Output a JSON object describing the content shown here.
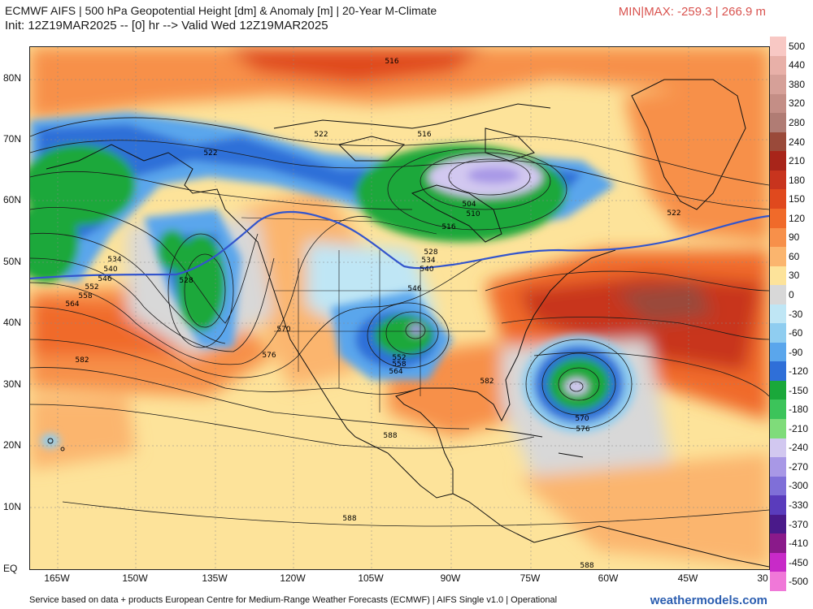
{
  "header": {
    "title": "ECMWF AIFS | 500 hPa Geopotential Height [dm] & Anomaly [m] | 20-Year M-Climate",
    "subtitle": "Init: 12Z19MAR2025 -- [0] hr --> Valid Wed 12Z19MAR2025",
    "minmax": "MIN|MAX: -259.3 | 266.9 m"
  },
  "map": {
    "lat_labels": [
      "80N",
      "70N",
      "60N",
      "50N",
      "40N",
      "30N",
      "20N",
      "10N",
      "EQ"
    ],
    "lon_labels": [
      "165W",
      "150W",
      "135W",
      "120W",
      "105W",
      "90W",
      "75W",
      "60W",
      "45W",
      "30"
    ],
    "height_labels": [
      "516",
      "522",
      "516",
      "522",
      "504",
      "510",
      "516",
      "528",
      "534",
      "540",
      "546",
      "534",
      "540",
      "546",
      "552",
      "558",
      "564",
      "528",
      "570",
      "576",
      "582",
      "582",
      "552",
      "558",
      "564",
      "570",
      "576",
      "588",
      "588",
      "588",
      "522"
    ],
    "colors": {
      "land_outline": "#111111",
      "reference_contour": "#3355cc",
      "height_contour": "#1a1a1a"
    }
  },
  "colorbar": {
    "labels": [
      "500",
      "440",
      "380",
      "320",
      "280",
      "240",
      "210",
      "180",
      "150",
      "120",
      "90",
      "60",
      "30",
      "0",
      "-30",
      "-60",
      "-90",
      "-120",
      "-150",
      "-180",
      "-210",
      "-240",
      "-270",
      "-300",
      "-330",
      "-370",
      "-410",
      "-450",
      "-500"
    ],
    "colors": [
      "#f8c8c4",
      "#e8b0a8",
      "#d6a098",
      "#c48e86",
      "#b07c74",
      "#9a4a3a",
      "#a8251a",
      "#c8341e",
      "#e0491e",
      "#f06a2a",
      "#f7904a",
      "#fbb56e",
      "#fde39a",
      "#d8d8d8",
      "#bfe6f5",
      "#8fcdf0",
      "#5aa6ec",
      "#2f6fd8",
      "#1aa83a",
      "#3cc45a",
      "#7fdc7a",
      "#d2c8f0",
      "#a898e6",
      "#7f6fd8",
      "#5a3cbc",
      "#4a1a8a",
      "#8a1a8a",
      "#c82ac8",
      "#f078d8"
    ]
  },
  "footer": {
    "source": "Service based on data + products European Centre for Medium-Range Weather Forecasts (ECMWF) | AIFS Single v1.0 | Operational",
    "brand": "weathermodels.com"
  }
}
